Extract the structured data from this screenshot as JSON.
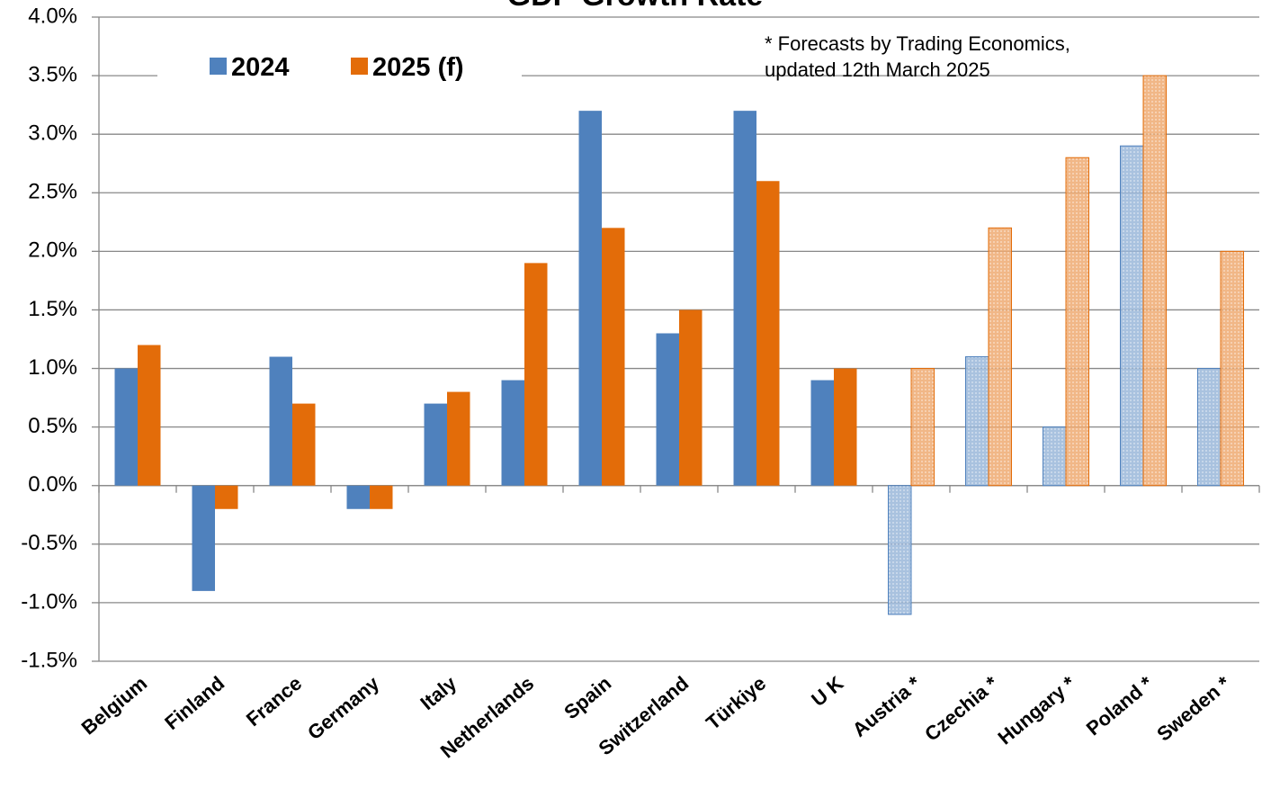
{
  "chart_data": {
    "type": "bar",
    "title": "GDP Growth Rate",
    "annotation": [
      "* Forecasts by Trading Economics,",
      "updated 12th March 2025"
    ],
    "categories": [
      "Belgium",
      "Finland",
      "France",
      "Germany",
      "Italy",
      "Netherlands",
      "Spain",
      "Switzerland",
      "Türkiye",
      "U K",
      "Austria *",
      "Czechia *",
      "Hungary *",
      "Poland *",
      "Sweden *"
    ],
    "hatched": [
      false,
      false,
      false,
      false,
      false,
      false,
      false,
      false,
      false,
      false,
      true,
      true,
      true,
      true,
      true
    ],
    "series": [
      {
        "name": "2024",
        "color": "#4f81bd",
        "values": [
          1.0,
          -0.9,
          1.1,
          -0.2,
          0.7,
          0.9,
          3.2,
          1.3,
          3.2,
          0.9,
          -1.1,
          1.1,
          0.5,
          2.9,
          1.0
        ]
      },
      {
        "name": "2025 (f)",
        "color": "#e36c09",
        "values": [
          1.2,
          -0.2,
          0.7,
          -0.2,
          0.8,
          1.9,
          2.2,
          1.5,
          2.6,
          1.0,
          1.0,
          2.2,
          2.8,
          3.5,
          2.0
        ]
      }
    ],
    "ylim": [
      -1.5,
      4.0
    ],
    "yticks": [
      {
        "value": -1.5,
        "label": "-1.5%"
      },
      {
        "value": -1.0,
        "label": "-1.0%"
      },
      {
        "value": -0.5,
        "label": "-0.5%"
      },
      {
        "value": 0,
        "label": "0.0%"
      },
      {
        "value": 0.5,
        "label": "0.5%"
      },
      {
        "value": 1.0,
        "label": "1.0%"
      },
      {
        "value": 1.5,
        "label": "1.5%"
      },
      {
        "value": 2.0,
        "label": "2.0%"
      },
      {
        "value": 2.5,
        "label": "2.5%"
      },
      {
        "value": 3.0,
        "label": "3.0%"
      },
      {
        "value": 3.5,
        "label": "3.5%"
      },
      {
        "value": 4.0,
        "label": "4.0%"
      }
    ],
    "grid": true,
    "legend": "top-left"
  }
}
